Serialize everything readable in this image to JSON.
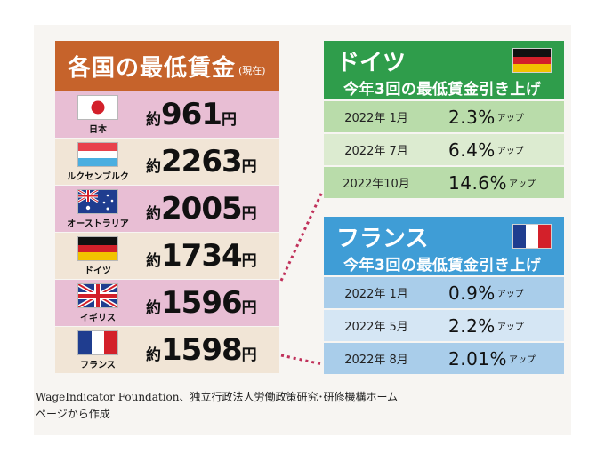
{
  "left": {
    "title": "各国の最低賃金",
    "subtitle": "(現在)",
    "rows": [
      {
        "country": "日本",
        "approx": "約",
        "amount": "961",
        "yen": "円"
      },
      {
        "country": "ルクセンブルク",
        "approx": "約",
        "amount": "2263",
        "yen": "円"
      },
      {
        "country": "オーストラリア",
        "approx": "約",
        "amount": "2005",
        "yen": "円"
      },
      {
        "country": "ドイツ",
        "approx": "約",
        "amount": "1734",
        "yen": "円"
      },
      {
        "country": "イギリス",
        "approx": "約",
        "amount": "1596",
        "yen": "円"
      },
      {
        "country": "フランス",
        "approx": "約",
        "amount": "1598",
        "yen": "円"
      }
    ]
  },
  "germany": {
    "name": "ドイツ",
    "subtitle": "今年3回の最低賃金引き上げ",
    "rows": [
      {
        "date": "2022年 1月",
        "pct": "2.3%",
        "up": "アップ"
      },
      {
        "date": "2022年 7月",
        "pct": "6.4%",
        "up": "アップ"
      },
      {
        "date": "2022年10月",
        "pct": "14.6%",
        "up": "アップ"
      }
    ]
  },
  "france": {
    "name": "フランス",
    "subtitle": "今年3回の最低賃金引き上げ",
    "rows": [
      {
        "date": "2022年 1月",
        "pct": "0.9%",
        "up": "アップ"
      },
      {
        "date": "2022年 5月",
        "pct": "2.2%",
        "up": "アップ"
      },
      {
        "date": "2022年 8月",
        "pct": "2.01%",
        "up": "アップ"
      }
    ]
  },
  "footer": {
    "line1": "WageIndicator Foundation、独立行政法人労働政策研究･研修機構ホーム",
    "line2": "ページから作成"
  },
  "colors": {
    "left_header": "#c6632b",
    "pink_row": "#e8bed4",
    "cream_row": "#f1e5d6",
    "germany_header": "#2f9d4b",
    "france_header": "#3f9dd6",
    "connector": "#c0305a"
  },
  "flags": [
    "japan-flag-icon",
    "luxembourg-flag-icon",
    "australia-flag-icon",
    "germany-flag-icon",
    "uk-flag-icon",
    "france-flag-icon"
  ]
}
